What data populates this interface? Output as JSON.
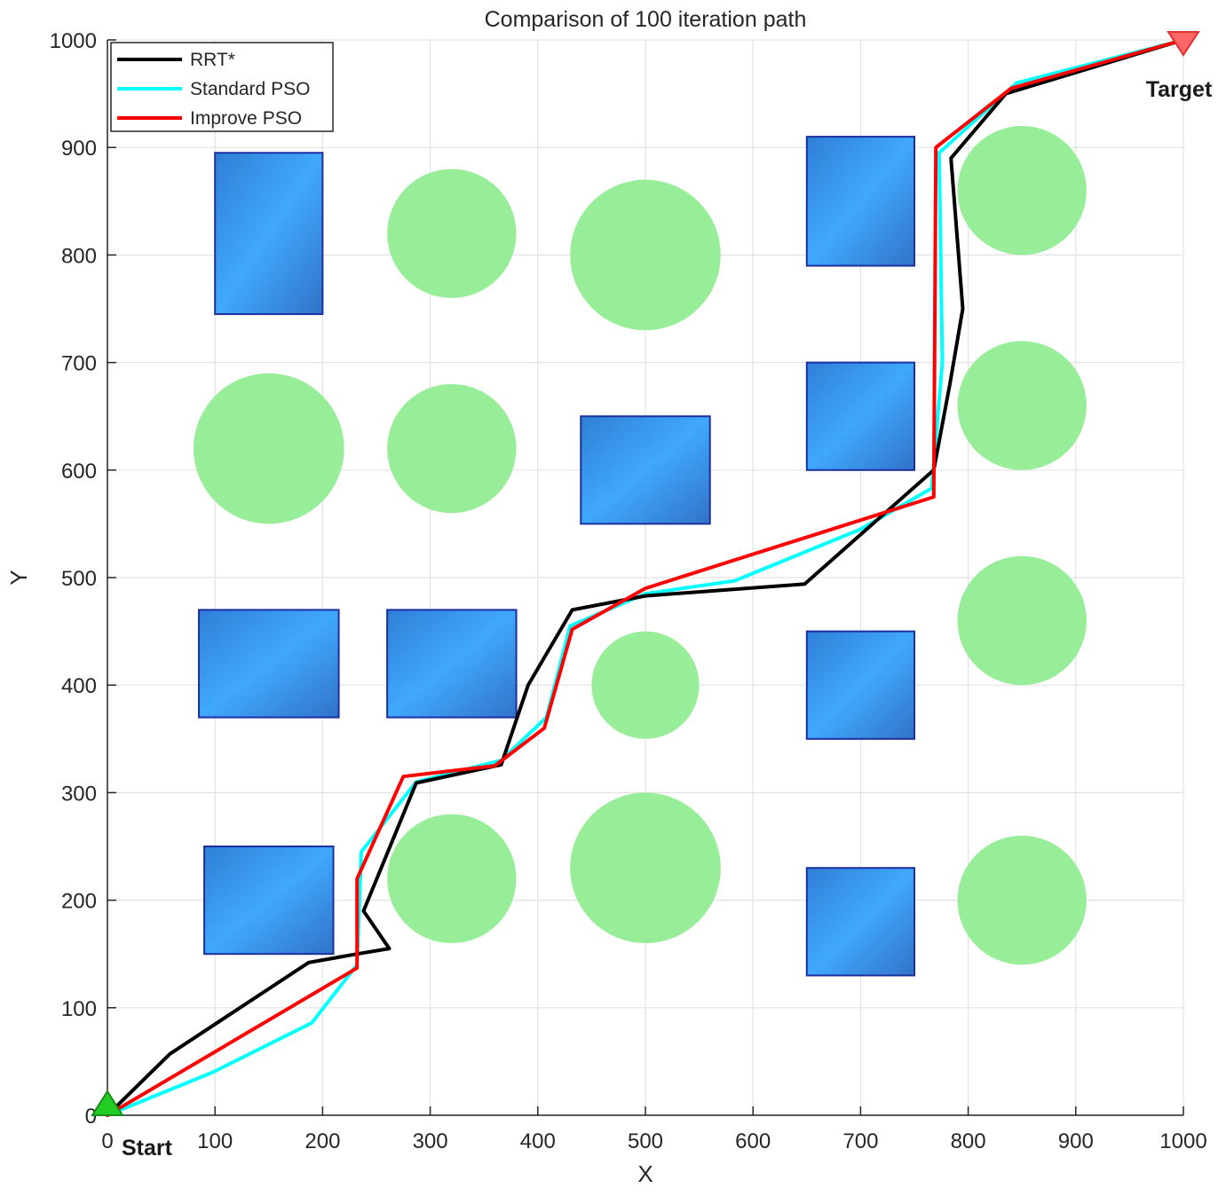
{
  "chart_data": {
    "type": "line",
    "title": "Comparison of 100 iteration path",
    "xlabel": "X",
    "ylabel": "Y",
    "xlim": [
      0,
      1000
    ],
    "ylim": [
      0,
      1000
    ],
    "xticks": [
      0,
      100,
      200,
      300,
      400,
      500,
      600,
      700,
      800,
      900,
      1000
    ],
    "yticks": [
      0,
      100,
      200,
      300,
      400,
      500,
      600,
      700,
      800,
      900,
      1000
    ],
    "grid": true,
    "legend_position": "top-left",
    "start": {
      "label": "Start",
      "x": 0,
      "y": 0,
      "color": "#22cc22"
    },
    "target": {
      "label": "Target",
      "x": 1000,
      "y": 1000,
      "color": "#ff6666"
    },
    "series": [
      {
        "name": "RRT*",
        "color": "#000000",
        "points": [
          [
            0,
            0
          ],
          [
            58,
            57
          ],
          [
            187,
            142
          ],
          [
            232,
            150
          ],
          [
            262,
            155
          ],
          [
            238,
            190
          ],
          [
            287,
            309
          ],
          [
            366,
            326
          ],
          [
            391,
            400
          ],
          [
            432,
            470
          ],
          [
            500,
            483
          ],
          [
            648,
            494
          ],
          [
            700,
            540
          ],
          [
            768,
            600
          ],
          [
            783,
            680
          ],
          [
            795,
            750
          ],
          [
            784,
            890
          ],
          [
            835,
            950
          ],
          [
            1000,
            1000
          ]
        ]
      },
      {
        "name": "Standard PSO",
        "color": "#00ffff",
        "points": [
          [
            0,
            0
          ],
          [
            98,
            40
          ],
          [
            190,
            86
          ],
          [
            232,
            140
          ],
          [
            236,
            245
          ],
          [
            287,
            310
          ],
          [
            366,
            330
          ],
          [
            408,
            370
          ],
          [
            430,
            455
          ],
          [
            500,
            485
          ],
          [
            583,
            497
          ],
          [
            700,
            545
          ],
          [
            766,
            583
          ],
          [
            776,
            700
          ],
          [
            773,
            895
          ],
          [
            845,
            960
          ],
          [
            1000,
            1000
          ]
        ]
      },
      {
        "name": "Improve PSO",
        "color": "#ff0000",
        "points": [
          [
            0,
            0
          ],
          [
            232,
            137
          ],
          [
            232,
            220
          ],
          [
            275,
            315
          ],
          [
            360,
            325
          ],
          [
            406,
            360
          ],
          [
            432,
            452
          ],
          [
            500,
            490
          ],
          [
            768,
            575
          ],
          [
            770,
            900
          ],
          [
            840,
            955
          ],
          [
            1000,
            1000
          ]
        ]
      }
    ],
    "obstacles": {
      "circles": [
        {
          "cx": 320,
          "cy": 820,
          "r": 60
        },
        {
          "cx": 500,
          "cy": 800,
          "r": 70
        },
        {
          "cx": 850,
          "cy": 860,
          "r": 60
        },
        {
          "cx": 150,
          "cy": 620,
          "r": 70
        },
        {
          "cx": 320,
          "cy": 620,
          "r": 60
        },
        {
          "cx": 850,
          "cy": 660,
          "r": 60
        },
        {
          "cx": 500,
          "cy": 400,
          "r": 50
        },
        {
          "cx": 850,
          "cy": 460,
          "r": 60
        },
        {
          "cx": 320,
          "cy": 220,
          "r": 60
        },
        {
          "cx": 500,
          "cy": 230,
          "r": 70
        },
        {
          "cx": 850,
          "cy": 200,
          "r": 60
        }
      ],
      "rects": [
        {
          "x0": 100,
          "x1": 200,
          "y0": 745,
          "y1": 895
        },
        {
          "x0": 650,
          "x1": 750,
          "y0": 790,
          "y1": 910
        },
        {
          "x0": 440,
          "x1": 560,
          "y0": 550,
          "y1": 650
        },
        {
          "x0": 650,
          "x1": 750,
          "y0": 600,
          "y1": 700
        },
        {
          "x0": 85,
          "x1": 215,
          "y0": 370,
          "y1": 470
        },
        {
          "x0": 260,
          "x1": 380,
          "y0": 370,
          "y1": 470
        },
        {
          "x0": 650,
          "x1": 750,
          "y0": 350,
          "y1": 450
        },
        {
          "x0": 90,
          "x1": 210,
          "y0": 150,
          "y1": 250
        },
        {
          "x0": 650,
          "x1": 750,
          "y0": 130,
          "y1": 230
        }
      ],
      "circle_color": "#98ee98",
      "rect_color": "#3aa0f6",
      "rect_edge_color": "#1c2fa0"
    }
  }
}
